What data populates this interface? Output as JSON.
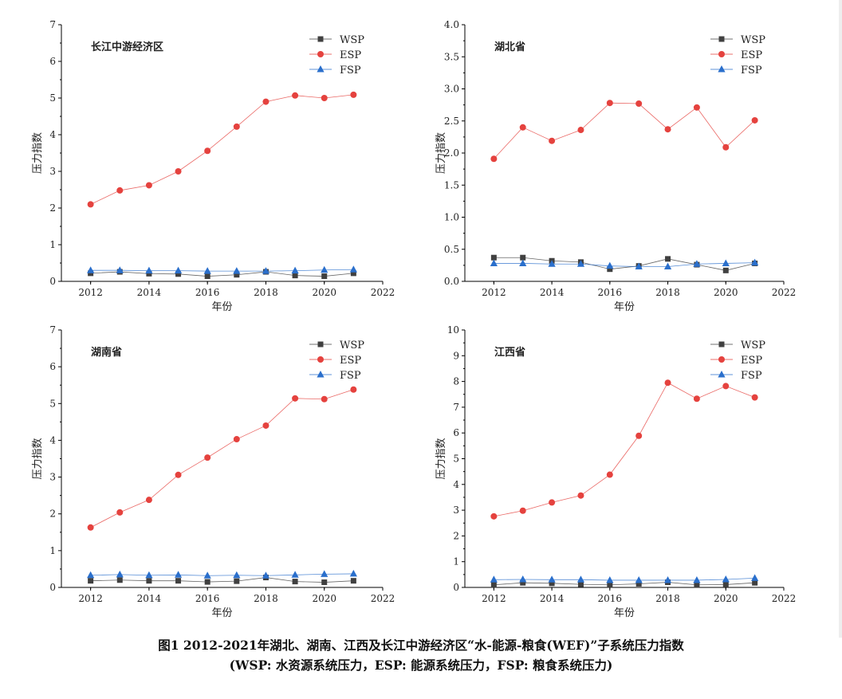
{
  "caption": {
    "line1": "图1 2012-2021年湖北、湖南、江西及长江中游经济区“水-能源-粮食(WEF)”子系统压力指数",
    "line2": "(WSP: 水资源系统压力，ESP: 能源系统压力，FSP: 粮食系统压力)"
  },
  "colors": {
    "WSP": "#404040",
    "ESP": "#e5423e",
    "FSP": "#2a6fcc"
  },
  "chart_data": [
    {
      "type": "line",
      "title": "长江中游经济区",
      "xlabel": "年份",
      "ylabel": "压力指数",
      "xlim": [
        2011,
        2022
      ],
      "ylim": [
        0,
        7
      ],
      "xticks": [
        "2012",
        "2014",
        "2016",
        "2018",
        "2020",
        "2022"
      ],
      "yticks": [
        "0",
        "1",
        "2",
        "3",
        "4",
        "5",
        "6",
        "7"
      ],
      "legend_position": "top-right",
      "grid": false,
      "x": [
        2012,
        2013,
        2014,
        2015,
        2016,
        2017,
        2018,
        2019,
        2020,
        2021
      ],
      "series": [
        {
          "name": "WSP",
          "marker": "square",
          "values": [
            0.22,
            0.26,
            0.21,
            0.2,
            0.14,
            0.18,
            0.26,
            0.16,
            0.14,
            0.22
          ]
        },
        {
          "name": "ESP",
          "marker": "circle",
          "values": [
            2.1,
            2.48,
            2.62,
            3.0,
            3.56,
            4.22,
            4.9,
            5.07,
            5.0,
            5.09
          ]
        },
        {
          "name": "FSP",
          "marker": "triangle",
          "values": [
            0.3,
            0.3,
            0.29,
            0.29,
            0.28,
            0.28,
            0.28,
            0.29,
            0.31,
            0.32
          ]
        }
      ]
    },
    {
      "type": "line",
      "title": "湖北省",
      "xlabel": "年份",
      "ylabel": "压力指数",
      "xlim": [
        2011,
        2022
      ],
      "ylim": [
        0,
        4
      ],
      "xticks": [
        "2012",
        "2014",
        "2016",
        "2018",
        "2020",
        "2022"
      ],
      "yticks": [
        "0.0",
        "0.5",
        "1.0",
        "1.5",
        "2.0",
        "2.5",
        "3.0",
        "3.5",
        "4.0"
      ],
      "legend_position": "top-right",
      "grid": false,
      "x": [
        2012,
        2013,
        2014,
        2015,
        2016,
        2017,
        2018,
        2019,
        2020,
        2021
      ],
      "series": [
        {
          "name": "WSP",
          "marker": "square",
          "values": [
            0.37,
            0.37,
            0.32,
            0.3,
            0.19,
            0.24,
            0.35,
            0.26,
            0.17,
            0.28
          ]
        },
        {
          "name": "ESP",
          "marker": "circle",
          "values": [
            1.91,
            2.4,
            2.19,
            2.36,
            2.78,
            2.77,
            2.37,
            2.71,
            2.09,
            2.51
          ]
        },
        {
          "name": "FSP",
          "marker": "triangle",
          "values": [
            0.28,
            0.28,
            0.27,
            0.27,
            0.24,
            0.23,
            0.23,
            0.27,
            0.28,
            0.29
          ]
        }
      ]
    },
    {
      "type": "line",
      "title": "湖南省",
      "xlabel": "年份",
      "ylabel": "压力指数",
      "xlim": [
        2011,
        2022
      ],
      "ylim": [
        0,
        7
      ],
      "xticks": [
        "2012",
        "2014",
        "2016",
        "2018",
        "2020",
        "2022"
      ],
      "yticks": [
        "0",
        "1",
        "2",
        "3",
        "4",
        "5",
        "6",
        "7"
      ],
      "legend_position": "top-right",
      "grid": false,
      "x": [
        2012,
        2013,
        2014,
        2015,
        2016,
        2017,
        2018,
        2019,
        2020,
        2021
      ],
      "series": [
        {
          "name": "WSP",
          "marker": "square",
          "values": [
            0.18,
            0.2,
            0.18,
            0.18,
            0.15,
            0.17,
            0.27,
            0.16,
            0.14,
            0.18
          ]
        },
        {
          "name": "ESP",
          "marker": "circle",
          "values": [
            1.63,
            2.04,
            2.38,
            3.06,
            3.53,
            4.03,
            4.4,
            5.14,
            5.12,
            5.38
          ]
        },
        {
          "name": "FSP",
          "marker": "triangle",
          "values": [
            0.33,
            0.35,
            0.33,
            0.34,
            0.32,
            0.33,
            0.32,
            0.34,
            0.36,
            0.37
          ]
        }
      ]
    },
    {
      "type": "line",
      "title": "江西省",
      "xlabel": "年份",
      "ylabel": "压力指数",
      "xlim": [
        2011,
        2022
      ],
      "ylim": [
        0,
        10
      ],
      "xticks": [
        "2012",
        "2014",
        "2016",
        "2018",
        "2020",
        "2022"
      ],
      "yticks": [
        "0",
        "1",
        "2",
        "3",
        "4",
        "5",
        "6",
        "7",
        "8",
        "9",
        "10"
      ],
      "legend_position": "top-right",
      "grid": false,
      "x": [
        2012,
        2013,
        2014,
        2015,
        2016,
        2017,
        2018,
        2019,
        2020,
        2021
      ],
      "series": [
        {
          "name": "WSP",
          "marker": "square",
          "values": [
            0.1,
            0.18,
            0.16,
            0.12,
            0.1,
            0.14,
            0.2,
            0.1,
            0.11,
            0.18
          ]
        },
        {
          "name": "ESP",
          "marker": "circle",
          "values": [
            2.76,
            2.98,
            3.3,
            3.57,
            4.38,
            5.89,
            7.95,
            7.33,
            7.82,
            7.38
          ]
        },
        {
          "name": "FSP",
          "marker": "triangle",
          "values": [
            0.3,
            0.31,
            0.3,
            0.3,
            0.28,
            0.28,
            0.28,
            0.28,
            0.31,
            0.36
          ]
        }
      ]
    }
  ]
}
